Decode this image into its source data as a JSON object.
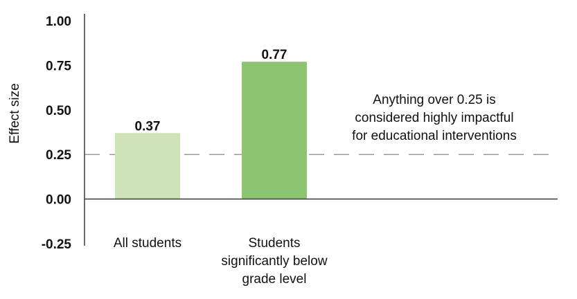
{
  "chart_data": {
    "type": "bar",
    "categories": [
      [
        "All students"
      ],
      [
        "Students",
        "significantly below",
        "grade level"
      ]
    ],
    "values": [
      0.37,
      0.77
    ],
    "value_labels": [
      "0.37",
      "0.77"
    ],
    "bar_colors": [
      "#cfe3b8",
      "#8dc46f"
    ],
    "ylabel": "Effect size",
    "ylim": [
      -0.25,
      1.0
    ],
    "yticks": [
      -0.25,
      0.0,
      0.25,
      0.5,
      0.75,
      1.0
    ],
    "ytick_labels": [
      "-0.25",
      "0.00",
      "0.25",
      "0.50",
      "0.75",
      "1.00"
    ],
    "reference_line": {
      "value": 0.25,
      "style": "dashed",
      "color": "#777777"
    },
    "annotation": [
      "Anything over 0.25 is",
      "considered highly impactful",
      "for educational interventions"
    ],
    "grid": false,
    "legend": "none"
  }
}
